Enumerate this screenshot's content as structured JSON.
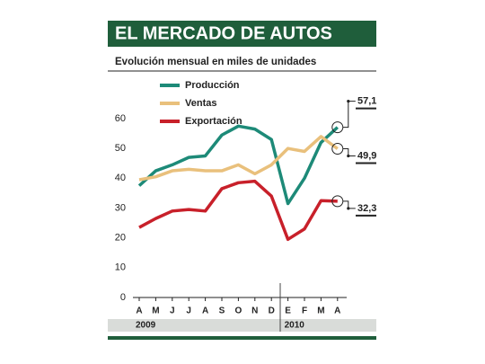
{
  "chart_data": {
    "type": "line",
    "title": "EL MERCADO DE AUTOS",
    "subtitle": "Evolución mensual en miles de unidades",
    "categories": [
      "A",
      "M",
      "J",
      "J",
      "A",
      "S",
      "O",
      "N",
      "D",
      "E",
      "F",
      "M",
      "A"
    ],
    "year_groups": [
      {
        "label": "2009",
        "from": 0,
        "to": 8
      },
      {
        "label": "2010",
        "from": 9,
        "to": 12
      }
    ],
    "series": [
      {
        "name": "Producción",
        "color": "#1d8a78",
        "values": [
          37.5,
          42.5,
          44.5,
          47,
          47.5,
          54.5,
          57.5,
          56.5,
          53,
          31.5,
          40,
          52,
          57.1
        ],
        "value_labels": [
          null,
          null,
          null,
          null,
          null,
          null,
          null,
          null,
          null,
          null,
          null,
          null,
          "57,1"
        ]
      },
      {
        "name": "Ventas",
        "color": "#e9c07c",
        "values": [
          39.5,
          40.5,
          42.5,
          43,
          42.5,
          42.5,
          44.5,
          41.5,
          44.5,
          50,
          49,
          54,
          49.9
        ],
        "value_labels": [
          null,
          null,
          null,
          null,
          null,
          null,
          null,
          null,
          null,
          null,
          null,
          null,
          "49,9"
        ]
      },
      {
        "name": "Exportación",
        "color": "#c8202a",
        "values": [
          23.5,
          26.5,
          29,
          29.5,
          29,
          36.5,
          38.5,
          39,
          34,
          19.5,
          23,
          32.5,
          32.3
        ],
        "value_labels": [
          null,
          null,
          null,
          null,
          null,
          null,
          null,
          null,
          null,
          null,
          null,
          null,
          "32,3"
        ]
      }
    ],
    "ylim": [
      0,
      60
    ],
    "yticks": [
      0,
      10,
      20,
      30,
      40,
      50,
      60
    ],
    "grid": false
  }
}
